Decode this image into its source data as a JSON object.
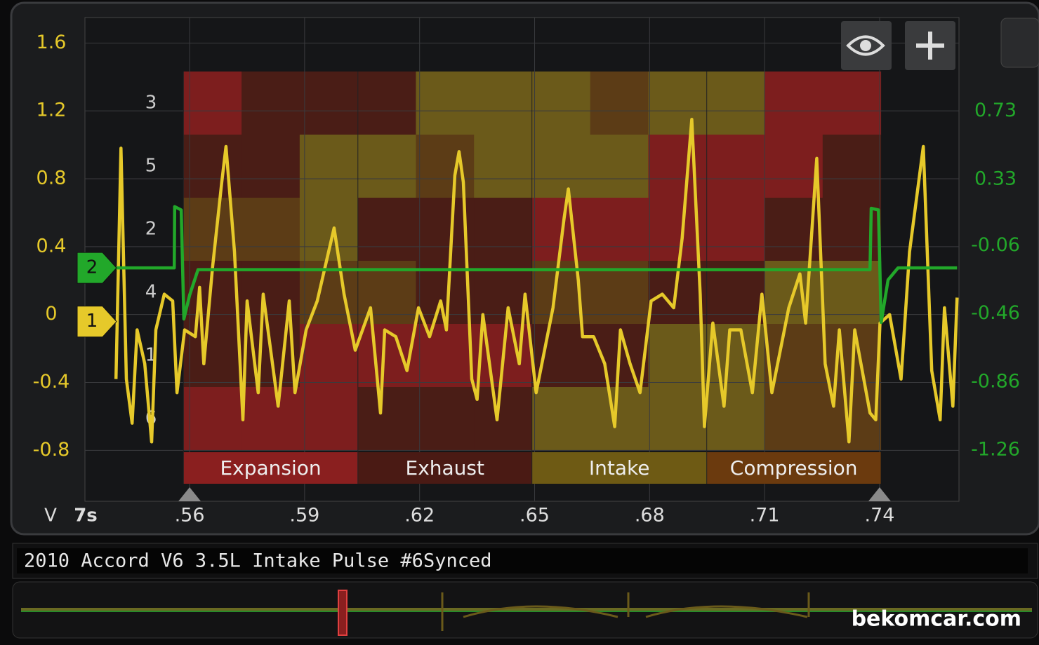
{
  "chart_data": {
    "type": "line",
    "title": "2010 Accord V6 3.5L Intake Pulse #6Synced",
    "watermark": "bekomcar.com",
    "y_unit": "V",
    "timebase": "7s",
    "xlim": [
      0.5327,
      0.7607
    ],
    "xticks": [
      {
        "value": 0.56,
        "label": ".56"
      },
      {
        "value": 0.59,
        "label": ".59"
      },
      {
        "value": 0.62,
        "label": ".62"
      },
      {
        "value": 0.65,
        "label": ".65"
      },
      {
        "value": 0.68,
        "label": ".68"
      },
      {
        "value": 0.71,
        "label": ".71"
      },
      {
        "value": 0.74,
        "label": ".74"
      }
    ],
    "ylim": [
      -1.1,
      1.75
    ],
    "yticks": [
      1.6,
      1.2,
      0.8,
      0.4,
      0,
      -0.4,
      -0.8
    ],
    "y2lim": [
      -1.56,
      1.28
    ],
    "y2ticks": [
      0.73,
      0.33,
      -0.06,
      -0.46,
      -0.86,
      -1.26
    ],
    "grid": true,
    "cursors": [
      0.56,
      0.74
    ],
    "cylinder_order": [
      "3",
      "5",
      "2",
      "4",
      "1",
      "6"
    ],
    "phases": [
      {
        "label": "Expansion",
        "x0": 0.5584,
        "x1": 0.6039,
        "color": "#8a1f1f"
      },
      {
        "label": "Exhaust",
        "x0": 0.6039,
        "x1": 0.6493,
        "color": "#4a1a14"
      },
      {
        "label": "Intake",
        "x0": 0.6493,
        "x1": 0.6949,
        "color": "#6e5a14"
      },
      {
        "label": "Compression",
        "x0": 0.6949,
        "x1": 0.7403,
        "color": "#6b3a0e"
      }
    ],
    "series": [
      {
        "name": "1",
        "color": "#e6c92a",
        "x": [
          0.5408,
          0.5421,
          0.5435,
          0.545,
          0.5463,
          0.5483,
          0.5501,
          0.5512,
          0.5534,
          0.5556,
          0.5567,
          0.5587,
          0.5615,
          0.5626,
          0.5637,
          0.566,
          0.5684,
          0.5695,
          0.5717,
          0.5739,
          0.575,
          0.5779,
          0.5792,
          0.5831,
          0.586,
          0.5875,
          0.5904,
          0.5933,
          0.5977,
          0.6003,
          0.6032,
          0.6072,
          0.6098,
          0.6109,
          0.6138,
          0.6167,
          0.6197,
          0.6226,
          0.6255,
          0.627,
          0.6292,
          0.6303,
          0.6314,
          0.6336,
          0.635,
          0.6365,
          0.6402,
          0.6431,
          0.646,
          0.6475,
          0.6504,
          0.6548,
          0.6577,
          0.6588,
          0.6614,
          0.6625,
          0.6654,
          0.6683,
          0.6709,
          0.6724,
          0.6749,
          0.6775,
          0.6804,
          0.6833,
          0.6863,
          0.6885,
          0.691,
          0.6932,
          0.6943,
          0.6965,
          0.6994,
          0.7009,
          0.7038,
          0.7068,
          0.7093,
          0.7119,
          0.7163,
          0.7192,
          0.7207,
          0.7236,
          0.7258,
          0.728,
          0.7295,
          0.732,
          0.7335,
          0.7375,
          0.739,
          0.7401,
          0.7426,
          0.7456,
          0.7478,
          0.7514,
          0.7536,
          0.7558,
          0.7569,
          0.7591,
          0.7602
        ],
        "values": [
          -0.38,
          0.98,
          -0.38,
          -0.64,
          -0.09,
          -0.29,
          -0.75,
          -0.09,
          0.12,
          0.08,
          -0.46,
          -0.09,
          -0.13,
          0.16,
          -0.29,
          0.28,
          0.78,
          0.99,
          0.37,
          -0.62,
          0.08,
          -0.46,
          0.12,
          -0.54,
          0.08,
          -0.46,
          -0.09,
          0.08,
          0.51,
          0.12,
          -0.21,
          0.04,
          -0.58,
          -0.09,
          -0.13,
          -0.33,
          0.04,
          -0.13,
          0.08,
          -0.09,
          0.82,
          0.96,
          0.78,
          -0.38,
          -0.5,
          0,
          -0.62,
          0.04,
          -0.29,
          0.12,
          -0.46,
          0.04,
          0.57,
          0.74,
          0.2,
          -0.13,
          -0.13,
          -0.29,
          -0.66,
          -0.09,
          -0.29,
          -0.46,
          0.08,
          0.12,
          0.04,
          0.45,
          1.15,
          0.12,
          -0.66,
          -0.05,
          -0.54,
          -0.09,
          -0.09,
          -0.46,
          0.12,
          -0.46,
          0.04,
          0.24,
          -0.05,
          0.92,
          -0.29,
          -0.54,
          -0.09,
          -0.75,
          -0.09,
          -0.58,
          -0.62,
          -0.05,
          0,
          -0.38,
          0.37,
          0.99,
          -0.33,
          -0.62,
          0.04,
          -0.54,
          0.1
        ]
      },
      {
        "name": "2",
        "color": "#22a82a",
        "axis": "y2",
        "x": [
          0.5408,
          0.556,
          0.5561,
          0.5578,
          0.5585,
          0.56,
          0.5622,
          0.7375,
          0.7378,
          0.7397,
          0.7404,
          0.7422,
          0.7448,
          0.7602
        ],
        "values": [
          -0.19,
          -0.19,
          0.17,
          0.15,
          -0.49,
          -0.35,
          -0.2,
          -0.2,
          0.16,
          0.15,
          -0.51,
          -0.26,
          -0.19,
          -0.19
        ]
      }
    ]
  }
}
